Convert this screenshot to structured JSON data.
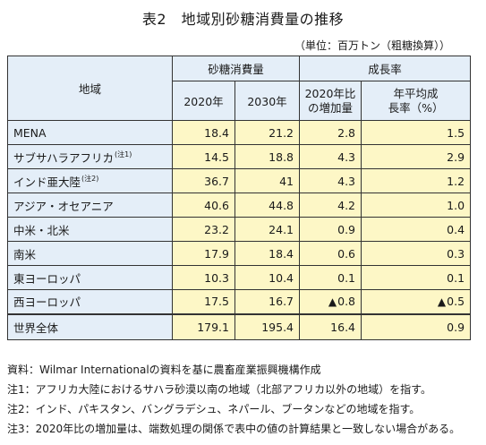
{
  "title": "表2　地域別砂糖消費量の推移",
  "unit": "（単位：百万トン（粗糖換算））",
  "header": {
    "region": "地域",
    "consumption": "砂糖消費量",
    "growth": "成長率",
    "y2020": "2020年",
    "y2030": "2030年",
    "increase_line1": "2020年比",
    "increase_line2": "の増加量",
    "avg_line1": "年平均成",
    "avg_line2": "長率（%）"
  },
  "rows": [
    {
      "region": "MENA",
      "note": "",
      "y2020": "18.4",
      "y2030": "21.2",
      "increase": "2.8",
      "avg": "1.5",
      "increase_neg": "",
      "avg_neg": ""
    },
    {
      "region": "サブサハラアフリカ",
      "note": "(注1)",
      "y2020": "14.5",
      "y2030": "18.8",
      "increase": "4.3",
      "avg": "2.9",
      "increase_neg": "",
      "avg_neg": ""
    },
    {
      "region": "インド亜大陸",
      "note": "(注2)",
      "y2020": "36.7",
      "y2030": "41",
      "increase": "4.3",
      "avg": "1.2",
      "increase_neg": "",
      "avg_neg": ""
    },
    {
      "region": "アジア・オセアニア",
      "note": "",
      "y2020": "40.6",
      "y2030": "44.8",
      "increase": "4.2",
      "avg": "1.0",
      "increase_neg": "",
      "avg_neg": ""
    },
    {
      "region": "中米・北米",
      "note": "",
      "y2020": "23.2",
      "y2030": "24.1",
      "increase": "0.9",
      "avg": "0.4",
      "increase_neg": "",
      "avg_neg": ""
    },
    {
      "region": "南米",
      "note": "",
      "y2020": "17.9",
      "y2030": "18.4",
      "increase": "0.6",
      "avg": "0.3",
      "increase_neg": "",
      "avg_neg": ""
    },
    {
      "region": "東ヨーロッパ",
      "note": "",
      "y2020": "10.3",
      "y2030": "10.4",
      "increase": "0.1",
      "avg": "0.1",
      "increase_neg": "",
      "avg_neg": ""
    },
    {
      "region": "西ヨーロッパ",
      "note": "",
      "y2020": "17.5",
      "y2030": "16.7",
      "increase": "0.8",
      "avg": "0.5",
      "increase_neg": "▲",
      "avg_neg": "▲"
    }
  ],
  "total": {
    "region": "世界全体",
    "y2020": "179.1",
    "y2030": "195.4",
    "increase": "16.4",
    "avg": "0.9"
  },
  "notes": {
    "source": "資料：Wilmar Internationalの資料を基に農畜産業振興機構作成",
    "note1": "注1：アフリカ大陸におけるサハラ砂漠以南の地域（北部アフリカ以外の地域）を指す。",
    "note2": "注2：インド、パキスタン、バングラデシュ、ネパール、ブータンなどの地域を指す。",
    "note3": "注3：2020年比の増加量は、端数処理の関係で表中の値の計算結果と一致しない場合がある。"
  },
  "colors": {
    "header_bg": "#e4eef8",
    "value_bg": "#fdf7c6",
    "border": "#333333"
  }
}
